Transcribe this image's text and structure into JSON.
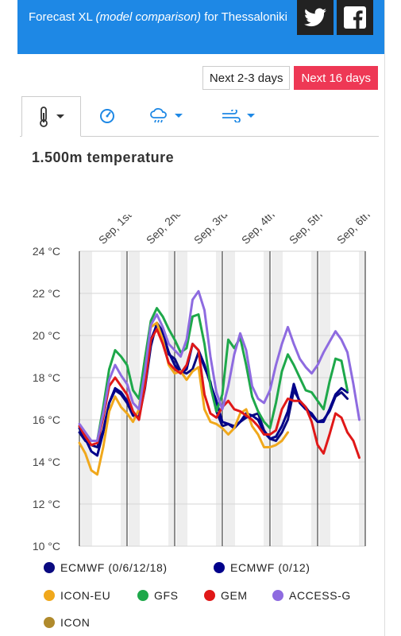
{
  "header": {
    "title_prefix": "Forecast XL ",
    "title_italic": "(model comparison)",
    "title_suffix": " for Thessaloniki",
    "twitter_icon": "twitter-icon",
    "facebook_icon": "facebook-icon"
  },
  "range_buttons": {
    "short": "Next 2-3 days",
    "long": "Next 16 days",
    "active": "long"
  },
  "tabs": [
    {
      "icon": "thermometer-icon",
      "active": true
    },
    {
      "icon": "gauge-icon"
    },
    {
      "icon": "cloud-rain-icon"
    },
    {
      "icon": "wind-icon"
    }
  ],
  "chart_title": "1.500m temperature",
  "chart_data": {
    "type": "line",
    "ylim": [
      10,
      24
    ],
    "yticks": [
      "10 °C",
      "12 °C",
      "14 °C",
      "16 °C",
      "18 °C",
      "20 °C",
      "22 °C",
      "24 °C"
    ],
    "day_labels": [
      "Sep, 1st",
      "Sep, 2nd",
      "Sep, 3rd",
      "Sep, 4th",
      "Sep, 5th",
      "Sep, 6th"
    ],
    "series": [
      {
        "name": "ECMWF (0/6/12/18)",
        "color": "#0a0a80",
        "values": [
          15.4,
          15.0,
          14.8,
          14.7,
          15.5,
          16.8,
          17.4,
          17.2,
          16.8,
          16.2,
          16.1,
          17.5,
          19.5,
          20.6,
          20.2,
          19.1,
          18.9,
          18.3,
          18.2,
          18.4,
          19.2,
          18.5,
          17.8,
          16.4,
          15.7,
          15.8,
          15.7,
          15.9,
          16.1,
          16.2,
          16.3,
          15.5,
          15.1,
          15.0,
          15.4,
          16.0,
          17.4,
          16.9,
          16.6,
          16.2,
          15.9,
          16.0,
          16.4,
          17.1,
          17.3,
          17.0
        ]
      },
      {
        "name": "ECMWF (0/12)",
        "color": "#00008b",
        "values": [
          15.6,
          15.1,
          14.5,
          14.3,
          15.4,
          16.8,
          17.5,
          17.3,
          16.9,
          16.3,
          16.1,
          17.7,
          19.8,
          20.5,
          20.1,
          19.2,
          18.6,
          18.2,
          18.4,
          19.6,
          19.3,
          18.6,
          17.7,
          16.9,
          15.9,
          15.8,
          15.6,
          15.9,
          16.3,
          16.2,
          16.0,
          15.4,
          15.1,
          15.2,
          15.7,
          16.4,
          17.7,
          16.8,
          16.5,
          16.3,
          15.9,
          15.9,
          16.5,
          17.2,
          17.5,
          17.3
        ]
      },
      {
        "name": "ICON-EU",
        "color": "#f0a81c",
        "values": [
          14.9,
          14.4,
          13.6,
          13.4,
          14.7,
          16.4,
          17.1,
          16.6,
          16.3,
          15.9,
          16.5,
          18.9,
          20.4,
          20.6,
          19.8,
          18.6,
          18.2,
          18.3,
          17.9,
          18.3,
          18.5,
          16.5,
          15.9,
          15.8,
          15.6,
          15.3,
          15.6,
          16.3,
          16.5,
          15.7,
          15.3,
          14.7,
          14.7,
          14.8,
          15.0,
          15.4
        ]
      },
      {
        "name": "GFS",
        "color": "#1ea84a",
        "values": [
          15.7,
          15.3,
          15.0,
          15.0,
          16.6,
          18.4,
          19.3,
          19.0,
          18.6,
          17.4,
          17.0,
          18.9,
          20.7,
          21.3,
          20.9,
          20.3,
          19.8,
          19.2,
          19.4,
          20.9,
          21.0,
          19.6,
          17.6,
          16.4,
          17.2,
          19.8,
          19.4,
          19.9,
          18.6,
          17.1,
          16.4,
          15.9,
          15.6,
          16.8,
          18.3,
          19.1,
          18.6,
          18.0,
          17.4,
          17.3,
          16.9,
          16.5,
          17.8,
          18.9,
          18.8,
          17.4
        ]
      },
      {
        "name": "GEM",
        "color": "#e01818",
        "values": [
          15.7,
          15.2,
          14.8,
          14.9,
          16.1,
          17.6,
          18.0,
          17.6,
          17.2,
          16.4,
          16.0,
          17.6,
          19.8,
          20.3,
          19.6,
          18.7,
          18.4,
          18.2,
          18.6,
          19.6,
          19.3,
          17.2,
          16.3,
          16.1,
          16.6,
          16.9,
          16.5,
          16.4,
          16.2,
          16.0,
          15.7,
          15.3,
          15.3,
          15.5,
          16.5,
          17.0,
          16.9,
          16.9,
          16.6,
          15.9,
          14.8,
          14.4,
          15.3,
          16.3,
          16.1,
          15.4,
          15.0,
          14.2
        ]
      },
      {
        "name": "ACCESS-G",
        "color": "#8e6be0",
        "values": [
          15.8,
          15.4,
          15.0,
          15.0,
          16.3,
          17.9,
          18.6,
          18.1,
          17.7,
          16.8,
          16.5,
          18.3,
          20.5,
          21.0,
          20.4,
          19.6,
          19.3,
          19.0,
          19.8,
          21.7,
          22.1,
          21.2,
          19.0,
          17.3,
          16.5,
          17.6,
          19.1,
          20.1,
          19.3,
          17.6,
          17.0,
          16.8,
          17.4,
          18.6,
          19.6,
          20.4,
          19.6,
          18.9,
          18.5,
          18.2,
          18.6,
          19.2,
          19.7,
          20.2,
          19.8,
          19.2,
          17.7,
          16.0
        ]
      },
      {
        "name": "ICON",
        "color": "#b08a2c",
        "values": []
      }
    ]
  }
}
